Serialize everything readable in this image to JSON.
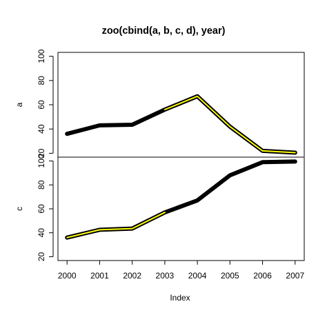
{
  "chart_data": {
    "type": "line",
    "title": "zoo(cbind(a, b, c, d), year)",
    "xlabel": "Index",
    "x": [
      2000,
      2001,
      2002,
      2003,
      2004,
      2005,
      2006,
      2007
    ],
    "xticks": [
      "2000",
      "2001",
      "2002",
      "2003",
      "2004",
      "2005",
      "2006",
      "2007"
    ],
    "panels": [
      {
        "ylabel": "a",
        "ylim": [
          20,
          100
        ],
        "yticks": [
          "20",
          "40",
          "60",
          "80",
          "100"
        ],
        "series": [
          {
            "values": [
              36,
              43,
              43.5,
              56,
              67,
              42,
              22,
              20.5
            ],
            "color": "#000000",
            "style": "thick"
          },
          {
            "values": [
              null,
              null,
              null,
              56,
              67,
              42,
              22,
              20.5
            ],
            "color": "#ffff00",
            "style": "inner"
          }
        ]
      },
      {
        "ylabel": "c",
        "ylim": [
          20,
          100
        ],
        "yticks": [
          "20",
          "40",
          "60",
          "80",
          "100"
        ],
        "series": [
          {
            "values": [
              36,
              42.5,
              43.5,
              57,
              67,
              88,
              99,
              99.5
            ],
            "color": "#000000",
            "style": "thick"
          },
          {
            "values": [
              36,
              42.5,
              43.5,
              57,
              null,
              null,
              null,
              null
            ],
            "color": "#ffff00",
            "style": "inner"
          }
        ]
      }
    ]
  }
}
